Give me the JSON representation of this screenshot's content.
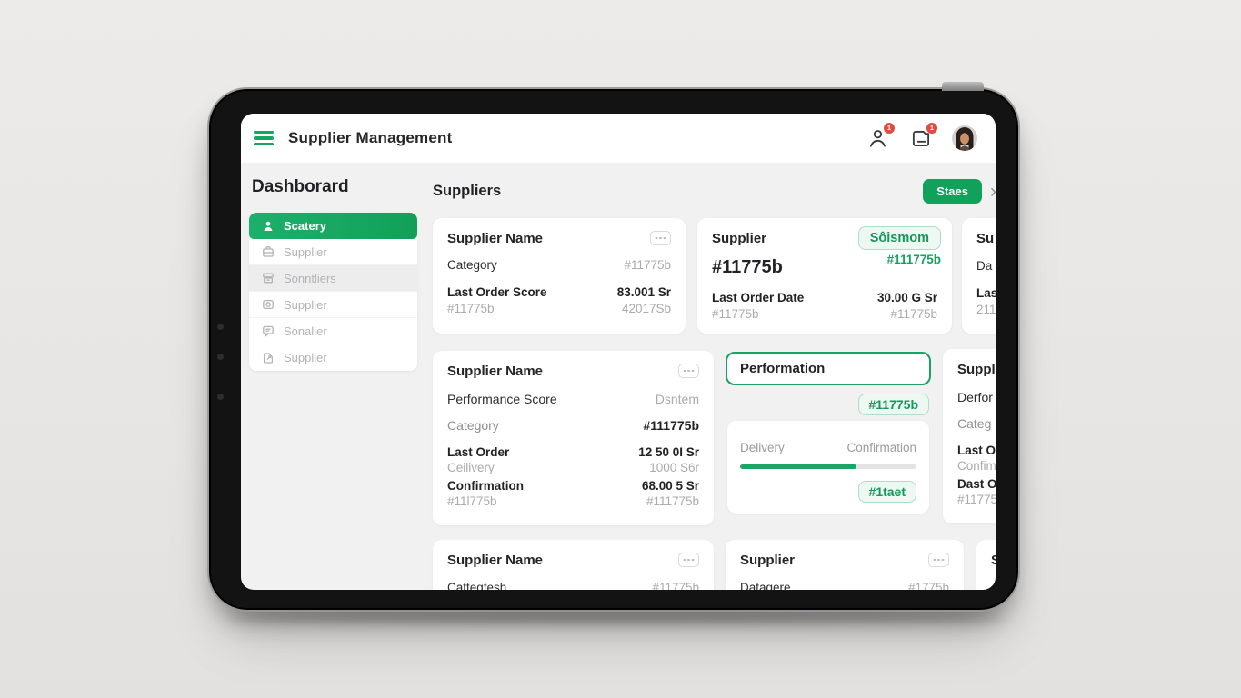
{
  "app": {
    "title": "Supplier Management"
  },
  "header": {
    "user_badge": "1",
    "inbox_badge": "1"
  },
  "sidebar": {
    "heading": "Dashborard",
    "items": [
      {
        "label": "Scatery"
      },
      {
        "label": "Supplier"
      },
      {
        "label": "Sonntliers"
      },
      {
        "label": "Supplier"
      },
      {
        "label": "Sonalier"
      },
      {
        "label": "Supplier"
      }
    ]
  },
  "main": {
    "heading": "Suppliers",
    "action_label": "Staes",
    "chevron": "›"
  },
  "colors": {
    "primary_green": "#14a462",
    "badge_green": "#17965c",
    "alert_red": "#e14a3f"
  },
  "cards": {
    "c1": {
      "title": "Supplier Name",
      "rows": [
        {
          "label": "Category",
          "value": "#11775b"
        },
        {
          "label": "Last Order Score",
          "value": "83.001 Sr"
        },
        {
          "label": "#11775b",
          "value": "42017Sb"
        }
      ]
    },
    "c2": {
      "title": "Supplier",
      "badge": "Sôismom",
      "badge_sub": "#111775b",
      "supplier_id": "#11775b",
      "rows": [
        {
          "label": "Last Order Date",
          "value": "30.00 G Sr"
        },
        {
          "label": "#11775b",
          "value": "#11775b"
        }
      ]
    },
    "c3": {
      "title": "Su",
      "line1": "Da",
      "line2": "Las",
      "line3": "211"
    },
    "c4": {
      "title": "Supplier Name",
      "rows": [
        {
          "label": "Performance Score",
          "value": "Dsntem"
        },
        {
          "label": "Category",
          "value": "#111775b"
        },
        {
          "label": "Last Order",
          "value": "12 50 0I Sr"
        },
        {
          "label": "Ceilivery",
          "value": "1000 S6r"
        },
        {
          "label": "Confirmation",
          "value": "68.00 5 Sr"
        },
        {
          "label": "#11l775b",
          "value": "#111775b"
        }
      ]
    },
    "c5": {
      "title": "Performation",
      "badge_top": "#11775b",
      "col_left": "Delivery",
      "col_right": "Confirmation",
      "progress_pct": 66,
      "badge_bottom": "#1taet"
    },
    "c6": {
      "title": "Suppli",
      "line1": "Derfor",
      "line2": "Categ",
      "line3": "Last Or",
      "line4": "Confim",
      "line5": "Dast O",
      "line6": "#11775"
    },
    "c7": {
      "title": "Supplier Name",
      "partial_label": "Cattegfesh",
      "partial_value": "#11775b"
    },
    "c8": {
      "title": "Supplier",
      "partial_label": "Datagere",
      "partial_value": "#1775b"
    },
    "c9": {
      "title": "S"
    }
  }
}
